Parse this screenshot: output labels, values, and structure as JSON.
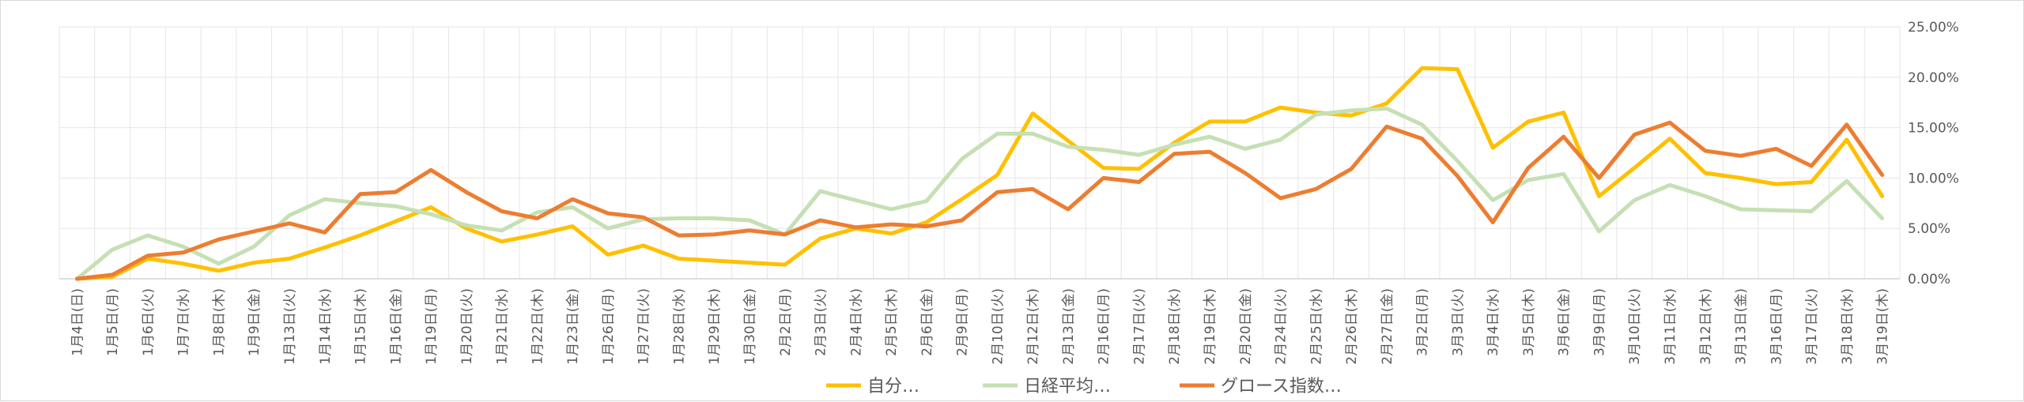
{
  "chart_data": {
    "type": "line",
    "title": "",
    "xlabel": "",
    "ylabel": "",
    "ylim": [
      0,
      25
    ],
    "y_tick_labels": [
      "0.00%",
      "5.00%",
      "10.00%",
      "15.00%",
      "20.00%",
      "25.00%"
    ],
    "y_ticks": [
      0,
      5,
      10,
      15,
      20,
      25
    ],
    "grid": true,
    "legend_position": "bottom",
    "categories": [
      "1月4日(日)",
      "1月5日(月)",
      "1月6日(火)",
      "1月7日(水)",
      "1月8日(木)",
      "1月9日(金)",
      "1月13日(火)",
      "1月14日(水)",
      "1月15日(木)",
      "1月16日(金)",
      "1月19日(月)",
      "1月20日(火)",
      "1月21日(水)",
      "1月22日(木)",
      "1月23日(金)",
      "1月26日(月)",
      "1月27日(火)",
      "1月28日(水)",
      "1月29日(木)",
      "1月30日(金)",
      "2月2日(月)",
      "2月3日(火)",
      "2月4日(水)",
      "2月5日(木)",
      "2月6日(金)",
      "2月9日(月)",
      "2月10日(火)",
      "2月12日(木)",
      "2月13日(金)",
      "2月16日(月)",
      "2月17日(火)",
      "2月18日(水)",
      "2月19日(木)",
      "2月20日(金)",
      "2月24日(火)",
      "2月25日(水)",
      "2月26日(木)",
      "2月27日(金)",
      "3月2日(月)",
      "3月3日(火)",
      "3月4日(水)",
      "3月5日(木)",
      "3月6日(金)",
      "3月9日(月)",
      "3月10日(火)",
      "3月11日(水)",
      "3月12日(木)",
      "3月13日(金)",
      "3月16日(月)",
      "3月17日(火)",
      "3月18日(水)",
      "3月19日(木)"
    ],
    "series": [
      {
        "name": "自分…",
        "color": "#FFC000",
        "values": [
          0.0,
          0.2,
          2.0,
          1.5,
          0.8,
          1.6,
          2.0,
          3.1,
          4.3,
          5.7,
          7.1,
          5.0,
          3.7,
          4.4,
          5.2,
          2.4,
          3.3,
          2.0,
          1.8,
          1.6,
          1.4,
          4.0,
          5.0,
          4.5,
          5.6,
          7.9,
          10.3,
          16.4,
          13.7,
          11.0,
          10.9,
          13.5,
          15.6,
          15.6,
          17.0,
          16.5,
          16.2,
          17.4,
          20.9,
          20.8,
          13.0,
          15.6,
          16.5,
          8.2,
          11.0,
          13.9,
          10.5,
          10.0,
          9.4,
          9.6,
          13.8,
          8.2
        ]
      },
      {
        "name": "日経平均…",
        "color": "#C5E0B4",
        "values": [
          0.0,
          2.9,
          4.3,
          3.2,
          1.5,
          3.2,
          6.3,
          7.9,
          7.5,
          7.2,
          6.4,
          5.3,
          4.8,
          6.6,
          7.1,
          5.0,
          5.9,
          6.0,
          6.0,
          5.8,
          4.4,
          8.7,
          7.8,
          6.9,
          7.7,
          11.9,
          14.4,
          14.4,
          13.1,
          12.8,
          12.3,
          13.3,
          14.1,
          12.9,
          13.8,
          16.3,
          16.7,
          16.9,
          15.3,
          11.7,
          7.8,
          9.8,
          10.4,
          4.7,
          7.8,
          9.3,
          8.2,
          6.9,
          6.8,
          6.7,
          9.7,
          6.0
        ]
      },
      {
        "name": "グロース指数…",
        "color": "#ED7D31",
        "values": [
          0.0,
          0.4,
          2.3,
          2.6,
          3.9,
          4.7,
          5.5,
          4.6,
          8.4,
          8.6,
          10.8,
          8.6,
          6.7,
          6.0,
          7.9,
          6.5,
          6.1,
          4.3,
          4.4,
          4.8,
          4.4,
          5.8,
          5.1,
          5.4,
          5.2,
          5.8,
          8.6,
          8.9,
          6.9,
          10.0,
          9.6,
          12.4,
          12.6,
          10.5,
          8.0,
          8.9,
          10.9,
          15.1,
          13.9,
          10.2,
          5.6,
          11.0,
          14.1,
          10.0,
          14.3,
          15.5,
          12.7,
          12.2,
          12.9,
          11.2,
          15.3,
          10.3
        ]
      }
    ]
  }
}
